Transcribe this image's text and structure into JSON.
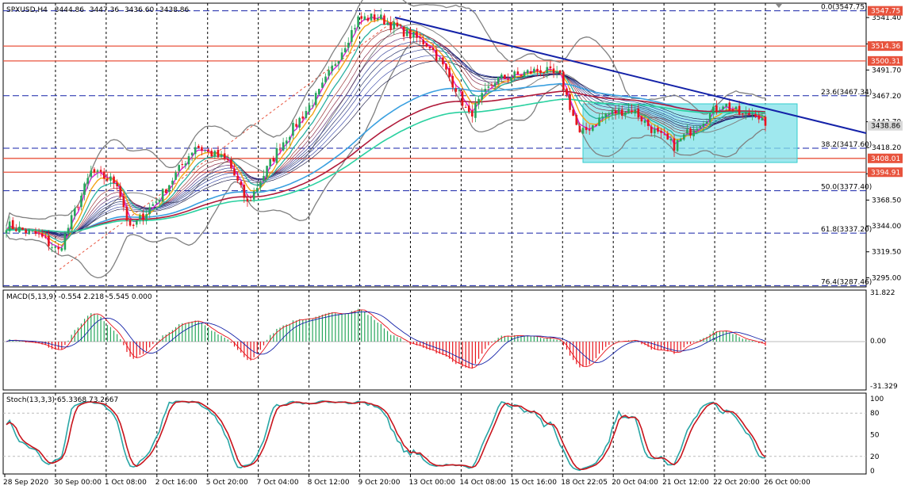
{
  "header": {
    "symbol": "SPXUSD,H4",
    "open": "3444.86",
    "high": "3447.36",
    "low": "3436.60",
    "close": "3438.86"
  },
  "main_axis": {
    "labels": [
      "3541.40",
      "3516.45",
      "3491.70",
      "3467.20",
      "3442.70",
      "3418.20",
      "3393.45",
      "3368.50",
      "3344.00",
      "3319.50",
      "3295.00"
    ],
    "current_price": "3438.86"
  },
  "horizontal_levels": [
    {
      "price": "3514.36",
      "color": "#e8533d"
    },
    {
      "price": "3500.31",
      "color": "#e8533d"
    },
    {
      "price": "3408.01",
      "color": "#e8533d"
    },
    {
      "price": "3394.91",
      "color": "#e8533d"
    }
  ],
  "fibonacci": [
    {
      "label": "0.0(3547.75)"
    },
    {
      "label": "23.6(3467.34)"
    },
    {
      "label": "38.2(3417.60)"
    },
    {
      "label": "50.0(3377.40)"
    },
    {
      "label": "61.8(3337.20)"
    },
    {
      "label": "76.4(3287.46)"
    }
  ],
  "top_tag": "3547.75",
  "macd": {
    "title": "MACD(5,13,9) -0.554 2.218 -5.545 0.000",
    "labels": [
      "31.822",
      "0.00",
      "-31.329"
    ]
  },
  "stoch": {
    "title": "Stoch(13,3,3) 65.3368 73.2667",
    "labels": [
      "100",
      "80",
      "50",
      "20",
      "0"
    ]
  },
  "time_axis": [
    "28 Sep 2020",
    "30 Sep 00:00",
    "1 Oct 08:00",
    "2 Oct 16:00",
    "5 Oct 20:00",
    "7 Oct 04:00",
    "8 Oct 12:00",
    "9 Oct 20:00",
    "13 Oct 00:00",
    "14 Oct 08:00",
    "15 Oct 16:00",
    "18 Oct 22:05",
    "20 Oct 04:00",
    "21 Oct 12:00",
    "22 Oct 20:00",
    "26 Oct 00:00"
  ],
  "colors": {
    "bull": "#26a65b",
    "bear": "#e8141c",
    "trendline": "#1422a8",
    "box": "#7fe0e8",
    "bollinger": "#808080"
  },
  "chart_data": {
    "type": "candlestick",
    "symbol": "SPXUSD",
    "timeframe": "H4",
    "ylim": [
      3290,
      3552
    ],
    "key_points": [
      {
        "i": 0,
        "close": 3345
      },
      {
        "i": 10,
        "close": 3335
      },
      {
        "i": 16,
        "close": 3320
      },
      {
        "i": 26,
        "close": 3395
      },
      {
        "i": 34,
        "close": 3385
      },
      {
        "i": 38,
        "close": 3340
      },
      {
        "i": 48,
        "close": 3375
      },
      {
        "i": 58,
        "close": 3420
      },
      {
        "i": 68,
        "close": 3405
      },
      {
        "i": 74,
        "close": 3365
      },
      {
        "i": 84,
        "close": 3420
      },
      {
        "i": 96,
        "close": 3470
      },
      {
        "i": 108,
        "close": 3540
      },
      {
        "i": 114,
        "close": 3542
      },
      {
        "i": 122,
        "close": 3528
      },
      {
        "i": 130,
        "close": 3515
      },
      {
        "i": 138,
        "close": 3475
      },
      {
        "i": 142,
        "close": 3448
      },
      {
        "i": 150,
        "close": 3482
      },
      {
        "i": 158,
        "close": 3488
      },
      {
        "i": 164,
        "close": 3492
      },
      {
        "i": 170,
        "close": 3485
      },
      {
        "i": 176,
        "close": 3430
      },
      {
        "i": 184,
        "close": 3450
      },
      {
        "i": 192,
        "close": 3455
      },
      {
        "i": 200,
        "close": 3430
      },
      {
        "i": 205,
        "close": 3420
      },
      {
        "i": 212,
        "close": 3440
      },
      {
        "i": 220,
        "close": 3460
      },
      {
        "i": 226,
        "close": 3448
      },
      {
        "i": 230,
        "close": 3452
      },
      {
        "i": 233,
        "close": 3439
      }
    ],
    "fib_levels": [
      3547.75,
      3467.34,
      3417.6,
      3377.4,
      3337.2,
      3287.46
    ],
    "horizontal_levels": [
      3514.36,
      3500.31,
      3408.01,
      3394.91
    ],
    "last_close": 3438.86
  }
}
